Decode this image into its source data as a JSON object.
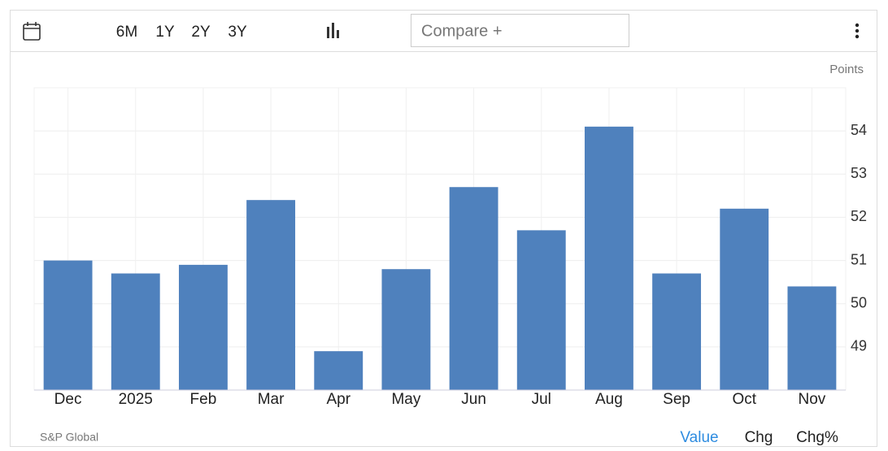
{
  "toolbar": {
    "ranges": [
      "6M",
      "1Y",
      "2Y",
      "3Y"
    ],
    "compare": "Compare +"
  },
  "footer": {
    "source": "S&P Global",
    "tabs": [
      "Value",
      "Chg",
      "Chg%"
    ]
  },
  "chart_data": {
    "type": "bar",
    "y_label": "Points",
    "categories": [
      "Dec",
      "2025",
      "Feb",
      "Mar",
      "Apr",
      "May",
      "Jun",
      "Jul",
      "Aug",
      "Sep",
      "Oct",
      "Nov"
    ],
    "values": [
      51.0,
      50.7,
      50.9,
      52.4,
      48.9,
      50.8,
      52.7,
      51.7,
      54.1,
      50.7,
      52.2,
      50.4
    ],
    "color": "#4f81bd",
    "ylim": [
      48,
      55
    ],
    "yticks": [
      49,
      50,
      51,
      52,
      53,
      54
    ],
    "grid": true
  }
}
